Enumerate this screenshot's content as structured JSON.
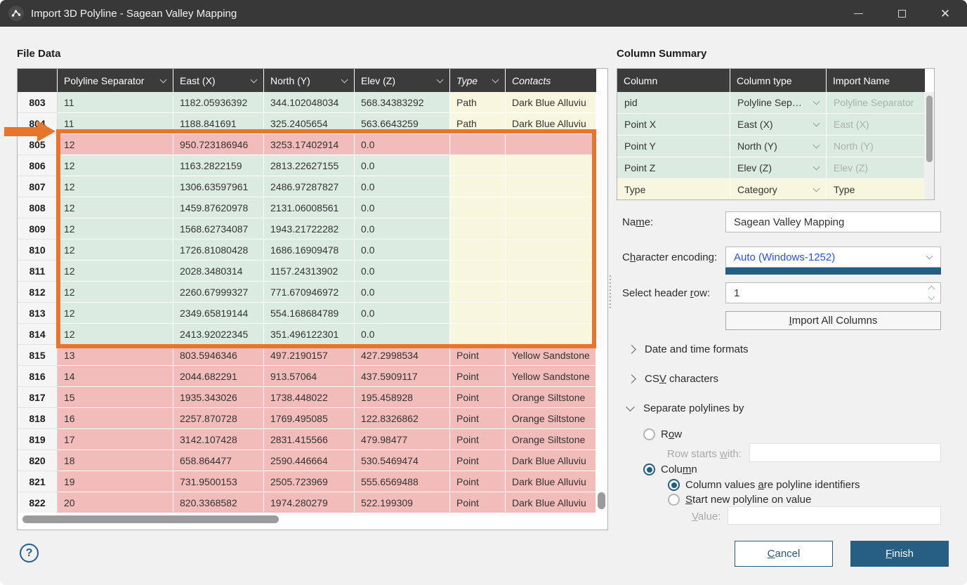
{
  "window": {
    "title": "Import 3D Polyline - Sagean Valley Mapping"
  },
  "colors": {
    "accent_blue": "#235e84",
    "annotation_orange": "#e8752c",
    "row_pink": "#f1bcba",
    "cell_green": "#dcebe2",
    "cell_yellow": "#f9f6df",
    "header_dark": "#3b3b3b",
    "encoding_link_blue": "#2b50d4"
  },
  "file_data": {
    "section_title": "File Data",
    "columns": [
      {
        "label": "Polyline Separator"
      },
      {
        "label": "East (X)"
      },
      {
        "label": "North (Y)"
      },
      {
        "label": "Elev (Z)"
      },
      {
        "label": "Type"
      },
      {
        "label": "Contacts"
      }
    ],
    "rows": [
      {
        "num": "803",
        "state": "normal",
        "cells": [
          "11",
          "1182.05936392",
          "344.102048034",
          "568.34383292",
          "Path",
          "Dark Blue Alluviu"
        ]
      },
      {
        "num": "804",
        "state": "normal",
        "cells": [
          "11",
          "1188.841691",
          "325.2405654",
          "563.6643259",
          "Path",
          "Dark Blue Alluviu"
        ]
      },
      {
        "num": "805",
        "state": "pink",
        "cells": [
          "12",
          "950.723186946",
          "3253.17402914",
          "0.0",
          "",
          ""
        ]
      },
      {
        "num": "806",
        "state": "normal",
        "cells": [
          "12",
          "1163.2822159",
          "2813.22627155",
          "0.0",
          "",
          ""
        ]
      },
      {
        "num": "807",
        "state": "normal",
        "cells": [
          "12",
          "1306.63597961",
          "2486.97287827",
          "0.0",
          "",
          ""
        ]
      },
      {
        "num": "808",
        "state": "normal",
        "cells": [
          "12",
          "1459.87620978",
          "2131.06008561",
          "0.0",
          "",
          ""
        ]
      },
      {
        "num": "809",
        "state": "normal",
        "cells": [
          "12",
          "1568.62734087",
          "1943.21722282",
          "0.0",
          "",
          ""
        ]
      },
      {
        "num": "810",
        "state": "normal",
        "cells": [
          "12",
          "1726.81080428",
          "1686.16909478",
          "0.0",
          "",
          ""
        ]
      },
      {
        "num": "811",
        "state": "normal",
        "cells": [
          "12",
          "2028.3480314",
          "1157.24313902",
          "0.0",
          "",
          ""
        ]
      },
      {
        "num": "812",
        "state": "normal",
        "cells": [
          "12",
          "2260.67999327",
          "771.670946972",
          "0.0",
          "",
          ""
        ]
      },
      {
        "num": "813",
        "state": "normal",
        "cells": [
          "12",
          "2349.65819144",
          "554.168684789",
          "0.0",
          "",
          ""
        ]
      },
      {
        "num": "814",
        "state": "normal",
        "cells": [
          "12",
          "2413.92022345",
          "351.496122301",
          "0.0",
          "",
          ""
        ]
      },
      {
        "num": "815",
        "state": "pink",
        "cells": [
          "13",
          "803.5946346",
          "497.2190157",
          "427.2998534",
          "Point",
          "Yellow Sandstone"
        ]
      },
      {
        "num": "816",
        "state": "pink",
        "cells": [
          "14",
          "2044.682291",
          "913.57064",
          "437.5909117",
          "Point",
          "Yellow Sandstone"
        ]
      },
      {
        "num": "817",
        "state": "pink",
        "cells": [
          "15",
          "1935.343026",
          "1738.448022",
          "195.458928",
          "Point",
          "Orange Siltstone"
        ]
      },
      {
        "num": "818",
        "state": "pink",
        "cells": [
          "16",
          "2257.870728",
          "1769.495085",
          "122.8326862",
          "Point",
          "Orange Siltstone"
        ]
      },
      {
        "num": "819",
        "state": "pink",
        "cells": [
          "17",
          "3142.107428",
          "2831.415566",
          "479.98477",
          "Point",
          "Orange Siltstone"
        ]
      },
      {
        "num": "820",
        "state": "pink",
        "cells": [
          "18",
          "658.864477",
          "2590.446664",
          "530.5469474",
          "Point",
          "Dark Blue Alluviu"
        ]
      },
      {
        "num": "821",
        "state": "pink",
        "cells": [
          "19",
          "731.9500153",
          "2505.723969",
          "555.6569488",
          "Point",
          "Dark Blue Alluviu"
        ]
      },
      {
        "num": "822",
        "state": "pink",
        "cells": [
          "20",
          "820.3368582",
          "1974.280279",
          "522.199309",
          "Point",
          "Dark Blue Alluviu"
        ]
      }
    ]
  },
  "column_summary": {
    "section_title": "Column Summary",
    "headers": [
      "Column",
      "Column type",
      "Import Name"
    ],
    "rows": [
      {
        "column": "pid",
        "column_type": "Polyline Sep…",
        "import_name": "Polyline Separator",
        "tone": "green",
        "import_enabled": false
      },
      {
        "column": "Point X",
        "column_type": "East (X)",
        "import_name": "East (X)",
        "tone": "green",
        "import_enabled": false
      },
      {
        "column": "Point Y",
        "column_type": "North (Y)",
        "import_name": "North (Y)",
        "tone": "green",
        "import_enabled": false
      },
      {
        "column": "Point Z",
        "column_type": "Elev (Z)",
        "import_name": "Elev (Z)",
        "tone": "green",
        "import_enabled": false
      },
      {
        "column": "Type",
        "column_type": "Category",
        "import_name": "Type",
        "tone": "yellow",
        "import_enabled": true
      }
    ]
  },
  "form": {
    "name_label": "Na_me:",
    "name_value": "Sagean Valley Mapping",
    "encoding_label": "C_haracter encoding:",
    "encoding_value": "Auto (Windows-1252)",
    "header_row_label": "Select header _row:",
    "header_row_value": "1",
    "import_all_label": "_Import All Columns",
    "sections": {
      "date_formats": "Date and time formats",
      "csv_characters": "CS_V characters",
      "separate_polylines": "Separate polylines by"
    },
    "separate": {
      "row_label": "R_ow",
      "row_starts_label": "Row starts _with:",
      "row_starts_value": "",
      "column_label": "Colu_mn",
      "column_values_label": "Column values _are polyline identifiers",
      "start_new_label": "_Start new polyline on value",
      "value_label": "_Value:",
      "value_value": ""
    }
  },
  "footer": {
    "cancel_label": "_Cancel",
    "finish_label": "_Finish",
    "help_label": "?"
  }
}
